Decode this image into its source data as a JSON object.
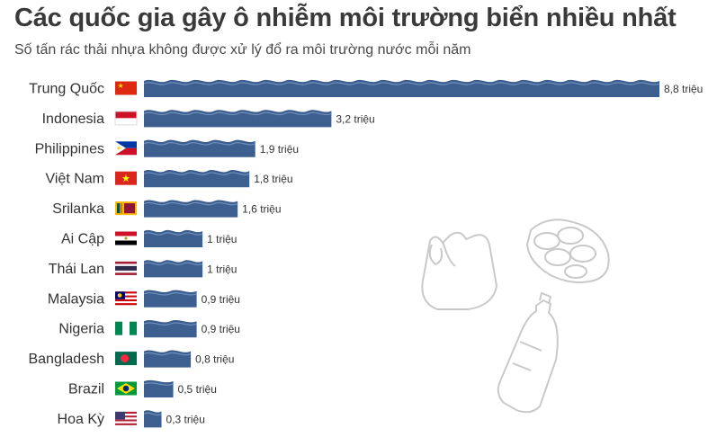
{
  "title": "Các quốc gia gây ô nhiễm môi trường biển nhiều nhất",
  "subtitle": "Số tấn rác thải nhựa không được xử lý đổ ra môi trường nước mỗi năm",
  "chart_data": {
    "type": "bar",
    "orientation": "horizontal",
    "title": "Các quốc gia gây ô nhiễm môi trường biển nhiều nhất",
    "subtitle": "Số tấn rác thải nhựa không được xử lý đổ ra môi trường nước mỗi năm",
    "unit": "triệu",
    "categories": [
      "Trung Quốc",
      "Indonesia",
      "Philippines",
      "Việt Nam",
      "Srilanka",
      "Ai Cập",
      "Thái Lan",
      "Malaysia",
      "Nigeria",
      "Bangladesh",
      "Brazil",
      "Hoa Kỳ"
    ],
    "values": [
      8.8,
      3.2,
      1.9,
      1.8,
      1.6,
      1,
      1,
      0.9,
      0.9,
      0.8,
      0.5,
      0.3
    ],
    "value_labels": [
      "8,8 triệu",
      "3,2 triệu",
      "1,9 triệu",
      "1,8 triệu",
      "1,6 triệu",
      "1 triệu",
      "1 triệu",
      "0,9 triệu",
      "0,9 triệu",
      "0,8 triệu",
      "0,5 triệu",
      "0,3 triệu"
    ],
    "flags": [
      "china-flag-icon",
      "indonesia-flag-icon",
      "philippines-flag-icon",
      "vietnam-flag-icon",
      "srilanka-flag-icon",
      "egypt-flag-icon",
      "thailand-flag-icon",
      "malaysia-flag-icon",
      "nigeria-flag-icon",
      "bangladesh-flag-icon",
      "brazil-flag-icon",
      "usa-flag-icon"
    ],
    "bar_color": "#3d5f8f",
    "grid": false,
    "legend": "none"
  },
  "decorations": [
    "plastic-bag-icon",
    "six-pack-rings-icon",
    "plastic-bottle-icon"
  ]
}
